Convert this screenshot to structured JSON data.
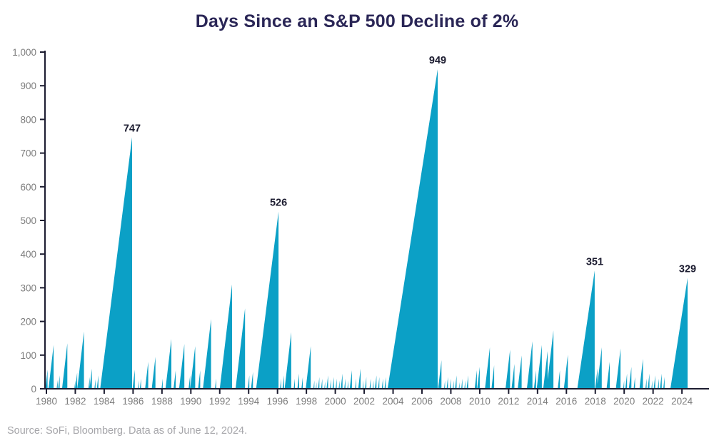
{
  "header": {
    "title": "Days Since an S&P 500 Decline of 2%"
  },
  "footer": {
    "source": "Source: SoFi, Bloomberg. Data as of June 12, 2024."
  },
  "chart_data": {
    "type": "area",
    "title": "Days Since an S&P 500 Decline of 2%",
    "xlabel": "",
    "ylabel": "",
    "xlim": [
      1979.9,
      2025.9
    ],
    "ylim": [
      0,
      1000
    ],
    "grid": false,
    "legend": false,
    "source_note": "Source: SoFi, Bloomberg. Data as of June 12, 2024.",
    "colors": {
      "fill": "#0ba0c6",
      "axis": "#1c1c30",
      "tick_label": "#7d7d7d",
      "peak_label": "#1c1c30",
      "title": "#2a2656",
      "source": "#a6a6aa",
      "bg": "#ffffff"
    },
    "x_ticks": [
      1980,
      1982,
      1984,
      1986,
      1988,
      1990,
      1992,
      1994,
      1996,
      1998,
      2000,
      2002,
      2004,
      2006,
      2008,
      2010,
      2012,
      2014,
      2016,
      2018,
      2020,
      2022,
      2024
    ],
    "y_ticks": [
      {
        "v": 0,
        "label": "0"
      },
      {
        "v": 100,
        "label": "100"
      },
      {
        "v": 200,
        "label": "200"
      },
      {
        "v": 300,
        "label": "300"
      },
      {
        "v": 400,
        "label": "400"
      },
      {
        "v": 500,
        "label": "500"
      },
      {
        "v": 600,
        "label": "600"
      },
      {
        "v": 700,
        "label": "700"
      },
      {
        "v": 800,
        "label": "800"
      },
      {
        "v": 900,
        "label": "900"
      },
      {
        "v": 1000,
        "label": "1,000"
      }
    ],
    "annotated_peaks": [
      {
        "label": "747",
        "year": 1986
      },
      {
        "label": "526",
        "year": 1996
      },
      {
        "label": "949",
        "year": 2007
      },
      {
        "label": "351",
        "year": 2018
      },
      {
        "label": "329",
        "year": 2024
      }
    ],
    "peaks": [
      {
        "t": 1980.08,
        "v": 57
      },
      {
        "t": 1980.25,
        "v": 20
      },
      {
        "t": 1980.5,
        "v": 130
      },
      {
        "t": 1980.78,
        "v": 26
      },
      {
        "t": 1980.92,
        "v": 40
      },
      {
        "t": 1981.45,
        "v": 135
      },
      {
        "t": 1982.0,
        "v": 25
      },
      {
        "t": 1982.13,
        "v": 48
      },
      {
        "t": 1982.6,
        "v": 170
      },
      {
        "t": 1983.0,
        "v": 35
      },
      {
        "t": 1983.15,
        "v": 60
      },
      {
        "t": 1983.4,
        "v": 28
      },
      {
        "t": 1983.6,
        "v": 40
      },
      {
        "t": 1985.93,
        "v": 747,
        "t0": 1983.72,
        "label": "747"
      },
      {
        "t": 1986.12,
        "v": 57
      },
      {
        "t": 1986.4,
        "v": 25
      },
      {
        "t": 1986.55,
        "v": 30
      },
      {
        "t": 1987.05,
        "v": 80
      },
      {
        "t": 1987.55,
        "v": 95
      },
      {
        "t": 1988.05,
        "v": 30
      },
      {
        "t": 1988.65,
        "v": 148
      },
      {
        "t": 1988.95,
        "v": 55
      },
      {
        "t": 1989.55,
        "v": 133
      },
      {
        "t": 1989.95,
        "v": 40
      },
      {
        "t": 1990.3,
        "v": 127
      },
      {
        "t": 1990.65,
        "v": 55
      },
      {
        "t": 1991.4,
        "v": 207
      },
      {
        "t": 1991.75,
        "v": 30
      },
      {
        "t": 1992.85,
        "v": 310
      },
      {
        "t": 1993.75,
        "v": 239
      },
      {
        "t": 1994.05,
        "v": 40
      },
      {
        "t": 1994.3,
        "v": 50
      },
      {
        "t": 1996.07,
        "v": 526,
        "t0": 1994.52,
        "label": "526"
      },
      {
        "t": 1996.25,
        "v": 30
      },
      {
        "t": 1996.45,
        "v": 40
      },
      {
        "t": 1996.95,
        "v": 168
      },
      {
        "t": 1997.2,
        "v": 30
      },
      {
        "t": 1997.5,
        "v": 45
      },
      {
        "t": 1997.75,
        "v": 35
      },
      {
        "t": 1998.3,
        "v": 127
      },
      {
        "t": 1998.55,
        "v": 25
      },
      {
        "t": 1998.7,
        "v": 20
      },
      {
        "t": 1998.9,
        "v": 35
      },
      {
        "t": 1999.1,
        "v": 30
      },
      {
        "t": 1999.3,
        "v": 22
      },
      {
        "t": 1999.5,
        "v": 40
      },
      {
        "t": 1999.7,
        "v": 28
      },
      {
        "t": 1999.9,
        "v": 35
      },
      {
        "t": 2000.1,
        "v": 30
      },
      {
        "t": 2000.3,
        "v": 25
      },
      {
        "t": 2000.5,
        "v": 45
      },
      {
        "t": 2000.7,
        "v": 30
      },
      {
        "t": 2000.9,
        "v": 25
      },
      {
        "t": 2001.15,
        "v": 55
      },
      {
        "t": 2001.45,
        "v": 30
      },
      {
        "t": 2001.75,
        "v": 60
      },
      {
        "t": 2001.95,
        "v": 25
      },
      {
        "t": 2002.15,
        "v": 35
      },
      {
        "t": 2002.45,
        "v": 30
      },
      {
        "t": 2002.65,
        "v": 25
      },
      {
        "t": 2002.85,
        "v": 40
      },
      {
        "t": 2003.05,
        "v": 35
      },
      {
        "t": 2003.3,
        "v": 30
      },
      {
        "t": 2003.5,
        "v": 35
      },
      {
        "t": 2007.09,
        "v": 949,
        "t0": 2003.62,
        "label": "949"
      },
      {
        "t": 2007.35,
        "v": 85
      },
      {
        "t": 2007.6,
        "v": 25
      },
      {
        "t": 2007.8,
        "v": 35
      },
      {
        "t": 2008.0,
        "v": 30
      },
      {
        "t": 2008.2,
        "v": 25
      },
      {
        "t": 2008.4,
        "v": 40
      },
      {
        "t": 2008.6,
        "v": 20
      },
      {
        "t": 2008.8,
        "v": 30
      },
      {
        "t": 2009.0,
        "v": 25
      },
      {
        "t": 2009.2,
        "v": 40
      },
      {
        "t": 2009.8,
        "v": 55
      },
      {
        "t": 2010.0,
        "v": 65
      },
      {
        "t": 2010.7,
        "v": 123
      },
      {
        "t": 2011.0,
        "v": 70
      },
      {
        "t": 2012.1,
        "v": 116
      },
      {
        "t": 2012.4,
        "v": 74
      },
      {
        "t": 2012.9,
        "v": 99
      },
      {
        "t": 2013.65,
        "v": 141
      },
      {
        "t": 2013.9,
        "v": 55
      },
      {
        "t": 2014.3,
        "v": 130
      },
      {
        "t": 2014.7,
        "v": 112
      },
      {
        "t": 2015.1,
        "v": 173
      },
      {
        "t": 2015.55,
        "v": 55
      },
      {
        "t": 2016.1,
        "v": 101
      },
      {
        "t": 2017.96,
        "v": 351,
        "t0": 2016.75,
        "label": "351"
      },
      {
        "t": 2018.15,
        "v": 60
      },
      {
        "t": 2018.45,
        "v": 123
      },
      {
        "t": 2019.0,
        "v": 80
      },
      {
        "t": 2019.75,
        "v": 120
      },
      {
        "t": 2020.0,
        "v": 25
      },
      {
        "t": 2020.2,
        "v": 45
      },
      {
        "t": 2020.5,
        "v": 65
      },
      {
        "t": 2020.75,
        "v": 35
      },
      {
        "t": 2021.3,
        "v": 89
      },
      {
        "t": 2021.55,
        "v": 30
      },
      {
        "t": 2021.75,
        "v": 45
      },
      {
        "t": 2021.95,
        "v": 25
      },
      {
        "t": 2022.15,
        "v": 40
      },
      {
        "t": 2022.4,
        "v": 30
      },
      {
        "t": 2022.6,
        "v": 45
      },
      {
        "t": 2022.8,
        "v": 35
      },
      {
        "t": 2024.39,
        "v": 329,
        "t0": 2023.2,
        "label": "329"
      }
    ]
  }
}
